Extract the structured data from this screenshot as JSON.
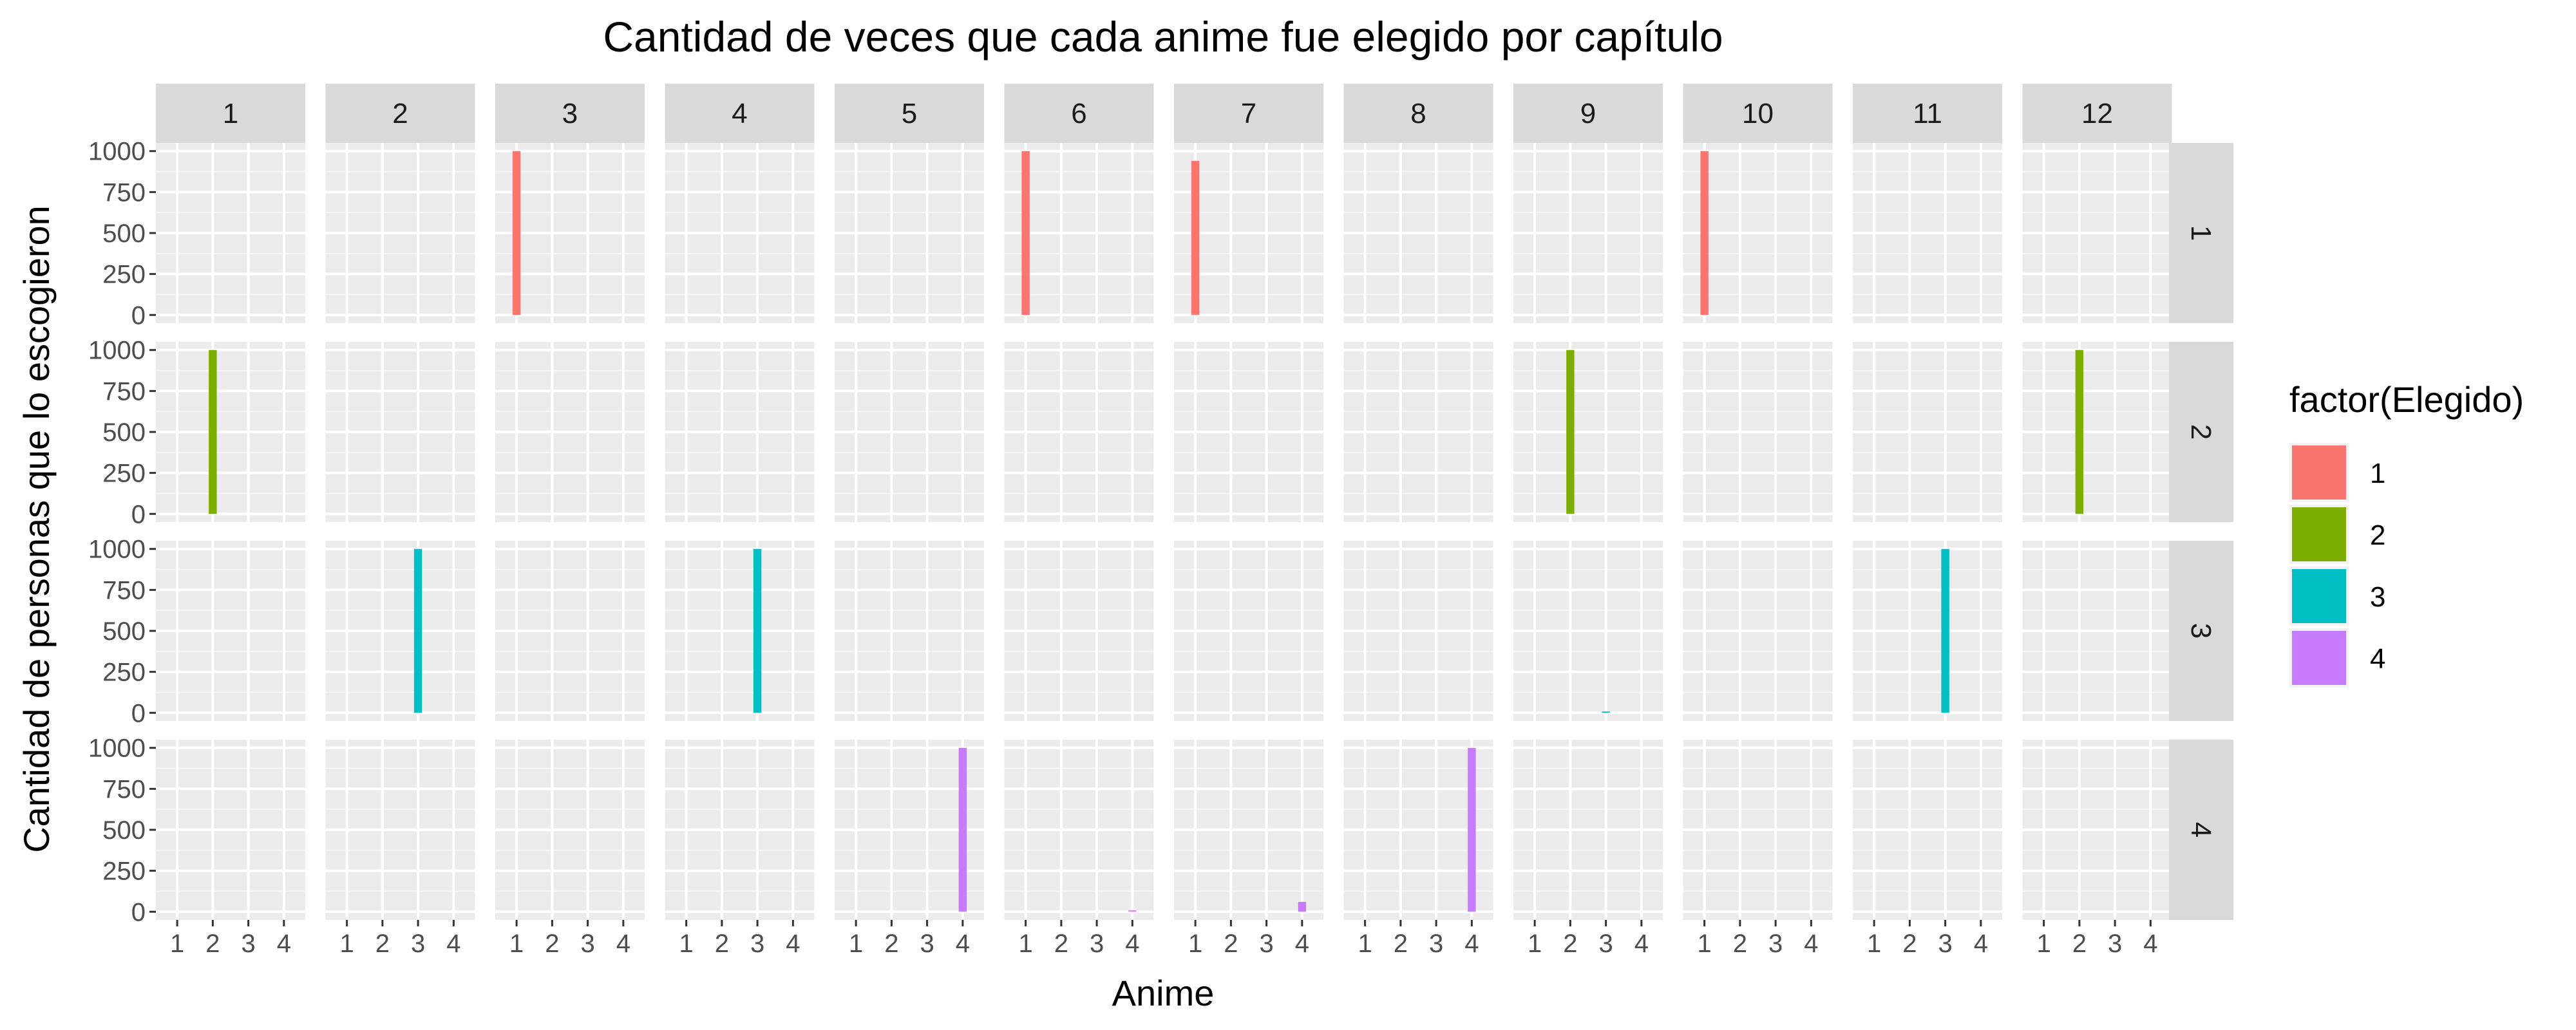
{
  "chart_data": {
    "type": "bar",
    "layout": "facet_grid",
    "title": "Cantidad de veces que cada anime fue elegido por capítulo",
    "xlabel": "Anime",
    "ylabel": "Cantidad de personas que lo escogieron",
    "column_facets": [
      "1",
      "2",
      "3",
      "4",
      "5",
      "6",
      "7",
      "8",
      "9",
      "10",
      "11",
      "12"
    ],
    "row_facets": [
      "1",
      "2",
      "3",
      "4"
    ],
    "x_ticks": [
      "1",
      "2",
      "3",
      "4"
    ],
    "y_ticks": [
      "0",
      "250",
      "500",
      "750",
      "1000"
    ],
    "ylim": [
      0,
      1000
    ],
    "grid": true,
    "legend": {
      "title": "factor(Elegido)",
      "position": "right",
      "entries": [
        "1",
        "2",
        "3",
        "4"
      ]
    },
    "colors": {
      "1": "#F8766D",
      "2": "#7CAE00",
      "3": "#00BFC4",
      "4": "#C77CFF"
    },
    "bars": [
      {
        "col": 3,
        "row": 1,
        "x": 1,
        "value": 1000
      },
      {
        "col": 6,
        "row": 1,
        "x": 1,
        "value": 1000
      },
      {
        "col": 7,
        "row": 1,
        "x": 1,
        "value": 940
      },
      {
        "col": 10,
        "row": 1,
        "x": 1,
        "value": 1000
      },
      {
        "col": 1,
        "row": 2,
        "x": 2,
        "value": 1000
      },
      {
        "col": 9,
        "row": 2,
        "x": 2,
        "value": 1000
      },
      {
        "col": 12,
        "row": 2,
        "x": 2,
        "value": 1000
      },
      {
        "col": 2,
        "row": 3,
        "x": 3,
        "value": 1000
      },
      {
        "col": 4,
        "row": 3,
        "x": 3,
        "value": 1000
      },
      {
        "col": 9,
        "row": 3,
        "x": 3,
        "value": 5
      },
      {
        "col": 11,
        "row": 3,
        "x": 3,
        "value": 1000
      },
      {
        "col": 5,
        "row": 4,
        "x": 4,
        "value": 1000
      },
      {
        "col": 6,
        "row": 4,
        "x": 4,
        "value": 3
      },
      {
        "col": 7,
        "row": 4,
        "x": 4,
        "value": 60
      },
      {
        "col": 8,
        "row": 4,
        "x": 4,
        "value": 1000
      }
    ]
  }
}
